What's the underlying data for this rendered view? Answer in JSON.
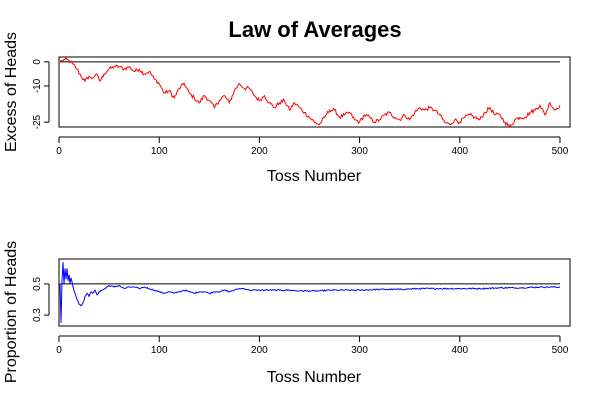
{
  "title": "Law of Averages",
  "colors": {
    "excess": "#ff0000",
    "proportion": "#0000ff",
    "reference": "#000000"
  },
  "chart_data": [
    {
      "type": "line",
      "xlabel": "Toss Number",
      "ylabel": "Excess of Heads",
      "xlim": [
        0,
        510
      ],
      "ylim": [
        -27,
        2
      ],
      "xticks": [
        0,
        100,
        200,
        300,
        400,
        500
      ],
      "xtick_labels": [
        "0",
        "100",
        "200",
        "300",
        "400",
        "500"
      ],
      "yticks": [
        0,
        -10,
        -25
      ],
      "ytick_labels": [
        "0",
        "-10",
        "-25"
      ],
      "reference": {
        "y": 0,
        "x_from": 1,
        "x_to": 500
      },
      "series": [
        {
          "color": "#ff0000",
          "anchors": [
            [
              1,
              0
            ],
            [
              3,
              0.5
            ],
            [
              6,
              1
            ],
            [
              10,
              0.5
            ],
            [
              14,
              -1
            ],
            [
              18,
              -3
            ],
            [
              22,
              -6
            ],
            [
              26,
              -8
            ],
            [
              30,
              -6
            ],
            [
              33,
              -7
            ],
            [
              37,
              -5
            ],
            [
              41,
              -8
            ],
            [
              45,
              -5
            ],
            [
              50,
              -3
            ],
            [
              55,
              -2
            ],
            [
              60,
              -2
            ],
            [
              65,
              -3
            ],
            [
              70,
              -2
            ],
            [
              75,
              -4
            ],
            [
              80,
              -3
            ],
            [
              85,
              -5
            ],
            [
              90,
              -4
            ],
            [
              95,
              -7
            ],
            [
              100,
              -9
            ],
            [
              105,
              -13
            ],
            [
              110,
              -12
            ],
            [
              115,
              -15
            ],
            [
              120,
              -11
            ],
            [
              125,
              -9
            ],
            [
              130,
              -13
            ],
            [
              135,
              -15
            ],
            [
              140,
              -17
            ],
            [
              145,
              -14
            ],
            [
              150,
              -16
            ],
            [
              155,
              -19
            ],
            [
              160,
              -16
            ],
            [
              165,
              -14
            ],
            [
              170,
              -17
            ],
            [
              175,
              -12
            ],
            [
              180,
              -9
            ],
            [
              185,
              -11
            ],
            [
              190,
              -11
            ],
            [
              195,
              -14
            ],
            [
              200,
              -16
            ],
            [
              205,
              -14
            ],
            [
              210,
              -17
            ],
            [
              215,
              -19
            ],
            [
              220,
              -17
            ],
            [
              225,
              -16
            ],
            [
              230,
              -20
            ],
            [
              235,
              -17
            ],
            [
              240,
              -19
            ],
            [
              245,
              -21
            ],
            [
              250,
              -23
            ],
            [
              255,
              -25
            ],
            [
              260,
              -26
            ],
            [
              265,
              -23
            ],
            [
              270,
              -20
            ],
            [
              275,
              -20
            ],
            [
              280,
              -23
            ],
            [
              285,
              -22
            ],
            [
              290,
              -21
            ],
            [
              295,
              -24
            ],
            [
              300,
              -25
            ],
            [
              305,
              -22
            ],
            [
              310,
              -23
            ],
            [
              315,
              -25
            ],
            [
              320,
              -24
            ],
            [
              325,
              -22
            ],
            [
              330,
              -21
            ],
            [
              335,
              -23
            ],
            [
              340,
              -24
            ],
            [
              345,
              -22
            ],
            [
              350,
              -24
            ],
            [
              355,
              -21
            ],
            [
              360,
              -19
            ],
            [
              365,
              -20
            ],
            [
              370,
              -19
            ],
            [
              375,
              -20
            ],
            [
              380,
              -22
            ],
            [
              385,
              -25
            ],
            [
              390,
              -26
            ],
            [
              395,
              -24
            ],
            [
              400,
              -25
            ],
            [
              405,
              -23
            ],
            [
              410,
              -22
            ],
            [
              415,
              -23
            ],
            [
              420,
              -24
            ],
            [
              425,
              -21
            ],
            [
              430,
              -19
            ],
            [
              435,
              -22
            ],
            [
              440,
              -22
            ],
            [
              445,
              -25
            ],
            [
              450,
              -27
            ],
            [
              455,
              -24
            ],
            [
              460,
              -23
            ],
            [
              465,
              -23
            ],
            [
              470,
              -21
            ],
            [
              475,
              -20
            ],
            [
              480,
              -18
            ],
            [
              485,
              -22
            ],
            [
              490,
              -17
            ],
            [
              495,
              -20
            ],
            [
              500,
              -18
            ]
          ]
        }
      ]
    },
    {
      "type": "line",
      "xlabel": "Toss Number",
      "ylabel": "Proportion of Heads",
      "xlim": [
        0,
        510
      ],
      "ylim": [
        0.23,
        0.66
      ],
      "xticks": [
        0,
        100,
        200,
        300,
        400,
        500
      ],
      "xtick_labels": [
        "0",
        "100",
        "200",
        "300",
        "400",
        "500"
      ],
      "yticks": [
        0.5,
        0.3
      ],
      "ytick_labels": [
        "0.5",
        "0.3"
      ],
      "reference": {
        "y": 0.5,
        "x_from": 1,
        "x_to": 500
      },
      "series": [
        {
          "color": "#0000ff",
          "anchors": [
            [
              1,
              0.5
            ],
            [
              2,
              0.25
            ],
            [
              3,
              0.52
            ],
            [
              4,
              0.64
            ],
            [
              5,
              0.5
            ],
            [
              6,
              0.6
            ],
            [
              7,
              0.53
            ],
            [
              8,
              0.6
            ],
            [
              9,
              0.52
            ],
            [
              10,
              0.56
            ],
            [
              11,
              0.5
            ],
            [
              12,
              0.54
            ],
            [
              14,
              0.48
            ],
            [
              16,
              0.44
            ],
            [
              18,
              0.4
            ],
            [
              20,
              0.37
            ],
            [
              22,
              0.36
            ],
            [
              24,
              0.38
            ],
            [
              26,
              0.42
            ],
            [
              28,
              0.44
            ],
            [
              30,
              0.42
            ],
            [
              32,
              0.45
            ],
            [
              34,
              0.44
            ],
            [
              36,
              0.46
            ],
            [
              38,
              0.43
            ],
            [
              40,
              0.45
            ],
            [
              43,
              0.46
            ],
            [
              46,
              0.47
            ],
            [
              50,
              0.49
            ],
            [
              55,
              0.48
            ],
            [
              60,
              0.49
            ],
            [
              65,
              0.47
            ],
            [
              70,
              0.48
            ],
            [
              75,
              0.48
            ],
            [
              80,
              0.47
            ],
            [
              85,
              0.48
            ],
            [
              90,
              0.47
            ],
            [
              95,
              0.46
            ],
            [
              100,
              0.45
            ],
            [
              105,
              0.44
            ],
            [
              110,
              0.45
            ],
            [
              115,
              0.44
            ],
            [
              120,
              0.45
            ],
            [
              125,
              0.46
            ],
            [
              130,
              0.45
            ],
            [
              135,
              0.44
            ],
            [
              140,
              0.45
            ],
            [
              145,
              0.45
            ],
            [
              150,
              0.44
            ],
            [
              155,
              0.45
            ],
            [
              160,
              0.45
            ],
            [
              165,
              0.46
            ],
            [
              170,
              0.45
            ],
            [
              175,
              0.46
            ],
            [
              180,
              0.47
            ],
            [
              185,
              0.47
            ],
            [
              190,
              0.46
            ],
            [
              200,
              0.46
            ],
            [
              210,
              0.46
            ],
            [
              220,
              0.46
            ],
            [
              230,
              0.46
            ],
            [
              240,
              0.455
            ],
            [
              250,
              0.455
            ],
            [
              260,
              0.455
            ],
            [
              270,
              0.46
            ],
            [
              280,
              0.46
            ],
            [
              290,
              0.46
            ],
            [
              300,
              0.46
            ],
            [
              320,
              0.465
            ],
            [
              340,
              0.465
            ],
            [
              360,
              0.47
            ],
            [
              380,
              0.47
            ],
            [
              400,
              0.47
            ],
            [
              420,
              0.47
            ],
            [
              440,
              0.475
            ],
            [
              460,
              0.475
            ],
            [
              480,
              0.48
            ],
            [
              500,
              0.48
            ]
          ]
        }
      ]
    }
  ]
}
